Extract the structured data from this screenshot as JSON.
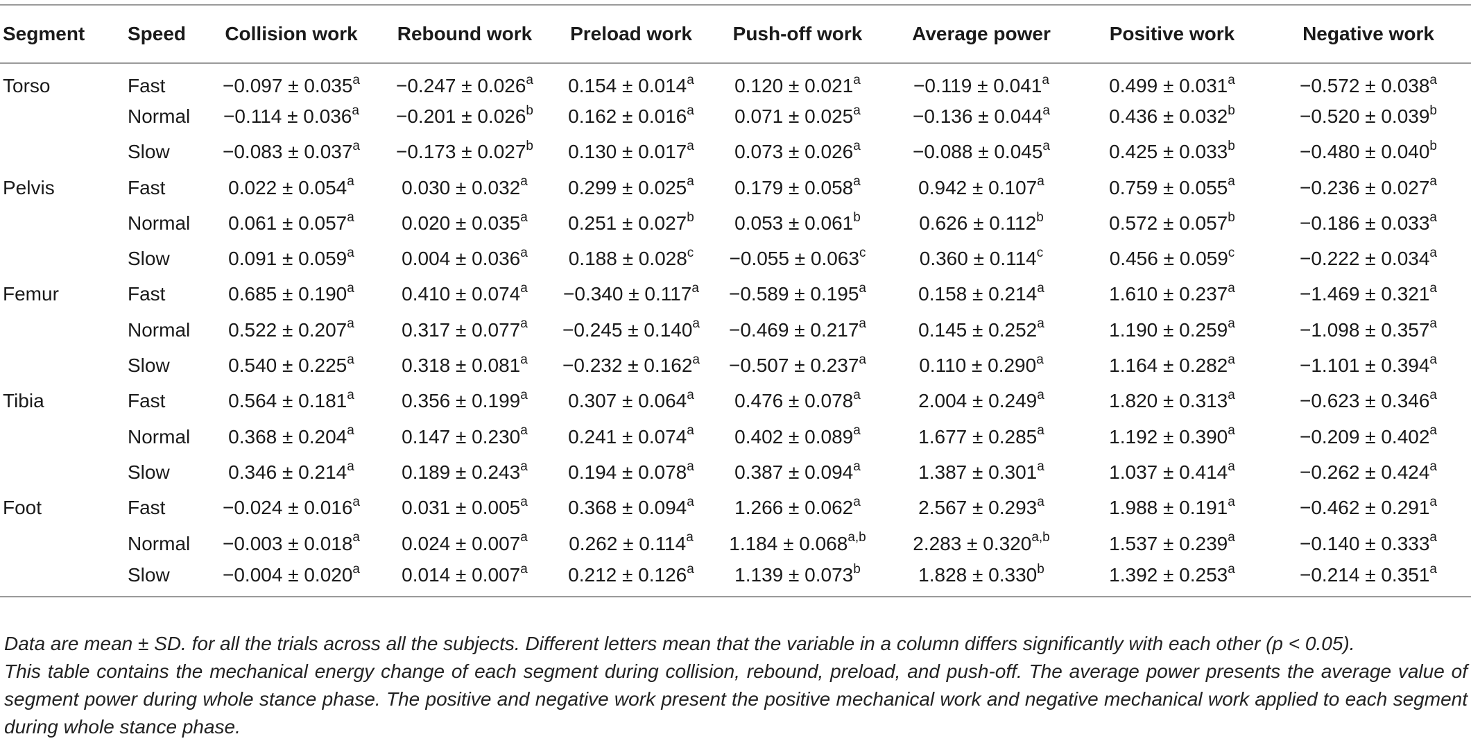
{
  "headers": [
    "Segment",
    "Speed",
    "Collision work",
    "Rebound work",
    "Preload work",
    "Push-off work",
    "Average power",
    "Positive work",
    "Negative work"
  ],
  "rows": [
    {
      "segment": "Torso",
      "speed": "Fast",
      "cells": [
        {
          "v": "−0.097 ± 0.035",
          "s": "a"
        },
        {
          "v": "−0.247 ± 0.026",
          "s": "a"
        },
        {
          "v": "0.154 ± 0.014",
          "s": "a"
        },
        {
          "v": "0.120 ± 0.021",
          "s": "a"
        },
        {
          "v": "−0.119 ± 0.041",
          "s": "a"
        },
        {
          "v": "0.499 ± 0.031",
          "s": "a"
        },
        {
          "v": "−0.572 ± 0.038",
          "s": "a"
        }
      ]
    },
    {
      "segment": "",
      "speed": "Normal",
      "cells": [
        {
          "v": "−0.114 ± 0.036",
          "s": "a"
        },
        {
          "v": "−0.201 ± 0.026",
          "s": "b"
        },
        {
          "v": "0.162 ± 0.016",
          "s": "a"
        },
        {
          "v": "0.071 ± 0.025",
          "s": "a"
        },
        {
          "v": "−0.136 ± 0.044",
          "s": "a"
        },
        {
          "v": "0.436 ± 0.032",
          "s": "b"
        },
        {
          "v": "−0.520 ± 0.039",
          "s": "b"
        }
      ]
    },
    {
      "segment": "",
      "speed": "Slow",
      "cells": [
        {
          "v": "−0.083 ± 0.037",
          "s": "a"
        },
        {
          "v": "−0.173 ± 0.027",
          "s": "b"
        },
        {
          "v": "0.130 ± 0.017",
          "s": "a"
        },
        {
          "v": "0.073 ± 0.026",
          "s": "a"
        },
        {
          "v": "−0.088 ± 0.045",
          "s": "a"
        },
        {
          "v": "0.425 ± 0.033",
          "s": "b"
        },
        {
          "v": "−0.480 ± 0.040",
          "s": "b"
        }
      ]
    },
    {
      "segment": "Pelvis",
      "speed": "Fast",
      "cells": [
        {
          "v": "0.022 ± 0.054",
          "s": "a"
        },
        {
          "v": "0.030 ± 0.032",
          "s": "a"
        },
        {
          "v": "0.299 ± 0.025",
          "s": "a"
        },
        {
          "v": "0.179 ± 0.058",
          "s": "a"
        },
        {
          "v": "0.942 ± 0.107",
          "s": "a"
        },
        {
          "v": "0.759 ± 0.055",
          "s": "a"
        },
        {
          "v": "−0.236 ± 0.027",
          "s": "a"
        }
      ]
    },
    {
      "segment": "",
      "speed": "Normal",
      "cells": [
        {
          "v": "0.061 ± 0.057",
          "s": "a"
        },
        {
          "v": "0.020 ± 0.035",
          "s": "a"
        },
        {
          "v": "0.251 ± 0.027",
          "s": "b"
        },
        {
          "v": "0.053 ± 0.061",
          "s": "b"
        },
        {
          "v": "0.626 ± 0.112",
          "s": "b"
        },
        {
          "v": "0.572 ± 0.057",
          "s": "b"
        },
        {
          "v": "−0.186 ± 0.033",
          "s": "a"
        }
      ]
    },
    {
      "segment": "",
      "speed": "Slow",
      "cells": [
        {
          "v": "0.091 ± 0.059",
          "s": "a"
        },
        {
          "v": "0.004 ± 0.036",
          "s": "a"
        },
        {
          "v": "0.188 ± 0.028",
          "s": "c"
        },
        {
          "v": "−0.055 ± 0.063",
          "s": "c"
        },
        {
          "v": "0.360 ± 0.114",
          "s": "c"
        },
        {
          "v": "0.456 ± 0.059",
          "s": "c"
        },
        {
          "v": "−0.222 ± 0.034",
          "s": "a"
        }
      ]
    },
    {
      "segment": "Femur",
      "speed": "Fast",
      "cells": [
        {
          "v": "0.685 ± 0.190",
          "s": "a"
        },
        {
          "v": "0.410 ± 0.074",
          "s": "a"
        },
        {
          "v": "−0.340 ± 0.117",
          "s": "a"
        },
        {
          "v": "−0.589 ± 0.195",
          "s": "a"
        },
        {
          "v": "0.158 ± 0.214",
          "s": "a"
        },
        {
          "v": "1.610 ± 0.237",
          "s": "a"
        },
        {
          "v": "−1.469 ± 0.321",
          "s": "a"
        }
      ]
    },
    {
      "segment": "",
      "speed": "Normal",
      "cells": [
        {
          "v": "0.522 ± 0.207",
          "s": "a"
        },
        {
          "v": "0.317 ± 0.077",
          "s": "a"
        },
        {
          "v": "−0.245 ± 0.140",
          "s": "a"
        },
        {
          "v": "−0.469 ± 0.217",
          "s": "a"
        },
        {
          "v": "0.145 ± 0.252",
          "s": "a"
        },
        {
          "v": "1.190 ± 0.259",
          "s": "a"
        },
        {
          "v": "−1.098 ± 0.357",
          "s": "a"
        }
      ]
    },
    {
      "segment": "",
      "speed": "Slow",
      "cells": [
        {
          "v": "0.540 ± 0.225",
          "s": "a"
        },
        {
          "v": "0.318 ± 0.081",
          "s": "a"
        },
        {
          "v": "−0.232 ± 0.162",
          "s": "a"
        },
        {
          "v": "−0.507 ± 0.237",
          "s": "a"
        },
        {
          "v": "0.110 ± 0.290",
          "s": "a"
        },
        {
          "v": "1.164 ± 0.282",
          "s": "a"
        },
        {
          "v": "−1.101 ± 0.394",
          "s": "a"
        }
      ]
    },
    {
      "segment": "Tibia",
      "speed": "Fast",
      "cells": [
        {
          "v": "0.564 ± 0.181",
          "s": "a"
        },
        {
          "v": "0.356 ± 0.199",
          "s": "a"
        },
        {
          "v": "0.307 ± 0.064",
          "s": "a"
        },
        {
          "v": "0.476 ± 0.078",
          "s": "a"
        },
        {
          "v": "2.004 ± 0.249",
          "s": "a"
        },
        {
          "v": "1.820 ± 0.313",
          "s": "a"
        },
        {
          "v": "−0.623 ± 0.346",
          "s": "a"
        }
      ]
    },
    {
      "segment": "",
      "speed": "Normal",
      "cells": [
        {
          "v": "0.368 ± 0.204",
          "s": "a"
        },
        {
          "v": "0.147 ± 0.230",
          "s": "a"
        },
        {
          "v": "0.241 ± 0.074",
          "s": "a"
        },
        {
          "v": "0.402 ± 0.089",
          "s": "a"
        },
        {
          "v": "1.677 ± 0.285",
          "s": "a"
        },
        {
          "v": "1.192 ± 0.390",
          "s": "a"
        },
        {
          "v": "−0.209 ± 0.402",
          "s": "a"
        }
      ]
    },
    {
      "segment": "",
      "speed": "Slow",
      "cells": [
        {
          "v": "0.346 ± 0.214",
          "s": "a"
        },
        {
          "v": "0.189 ± 0.243",
          "s": "a"
        },
        {
          "v": "0.194 ± 0.078",
          "s": "a"
        },
        {
          "v": "0.387 ± 0.094",
          "s": "a"
        },
        {
          "v": "1.387 ± 0.301",
          "s": "a"
        },
        {
          "v": "1.037 ± 0.414",
          "s": "a"
        },
        {
          "v": "−0.262 ± 0.424",
          "s": "a"
        }
      ]
    },
    {
      "segment": "Foot",
      "speed": "Fast",
      "cells": [
        {
          "v": "−0.024 ± 0.016",
          "s": "a"
        },
        {
          "v": "0.031 ± 0.005",
          "s": "a"
        },
        {
          "v": "0.368 ± 0.094",
          "s": "a"
        },
        {
          "v": "1.266 ± 0.062",
          "s": "a"
        },
        {
          "v": "2.567 ± 0.293",
          "s": "a"
        },
        {
          "v": "1.988 ± 0.191",
          "s": "a"
        },
        {
          "v": "−0.462 ± 0.291",
          "s": "a"
        }
      ]
    },
    {
      "segment": "",
      "speed": "Normal",
      "cells": [
        {
          "v": "−0.003 ± 0.018",
          "s": "a"
        },
        {
          "v": "0.024 ± 0.007",
          "s": "a"
        },
        {
          "v": "0.262 ± 0.114",
          "s": "a"
        },
        {
          "v": "1.184 ± 0.068",
          "s": "a,b"
        },
        {
          "v": "2.283 ± 0.320",
          "s": "a,b"
        },
        {
          "v": "1.537 ± 0.239",
          "s": "a"
        },
        {
          "v": "−0.140 ± 0.333",
          "s": "a"
        }
      ]
    },
    {
      "segment": "",
      "speed": "Slow",
      "cells": [
        {
          "v": "−0.004 ± 0.020",
          "s": "a"
        },
        {
          "v": "0.014 ± 0.007",
          "s": "a"
        },
        {
          "v": "0.212 ± 0.126",
          "s": "a"
        },
        {
          "v": "1.139 ± 0.073",
          "s": "b"
        },
        {
          "v": "1.828 ± 0.330",
          "s": "b"
        },
        {
          "v": "1.392 ± 0.253",
          "s": "a"
        },
        {
          "v": "−0.214 ± 0.351",
          "s": "a"
        }
      ]
    }
  ],
  "notes": [
    "Data are mean ± SD. for all the trials across all the subjects. Different letters mean that the variable in a column differs significantly with each other (p < 0.05).",
    "This table contains the mechanical energy change of each segment during collision, rebound, preload, and push-off. The average power presents the average value of segment power during whole stance phase. The positive and negative work present the positive mechanical work and negative mechanical work applied to each segment during whole stance phase."
  ]
}
